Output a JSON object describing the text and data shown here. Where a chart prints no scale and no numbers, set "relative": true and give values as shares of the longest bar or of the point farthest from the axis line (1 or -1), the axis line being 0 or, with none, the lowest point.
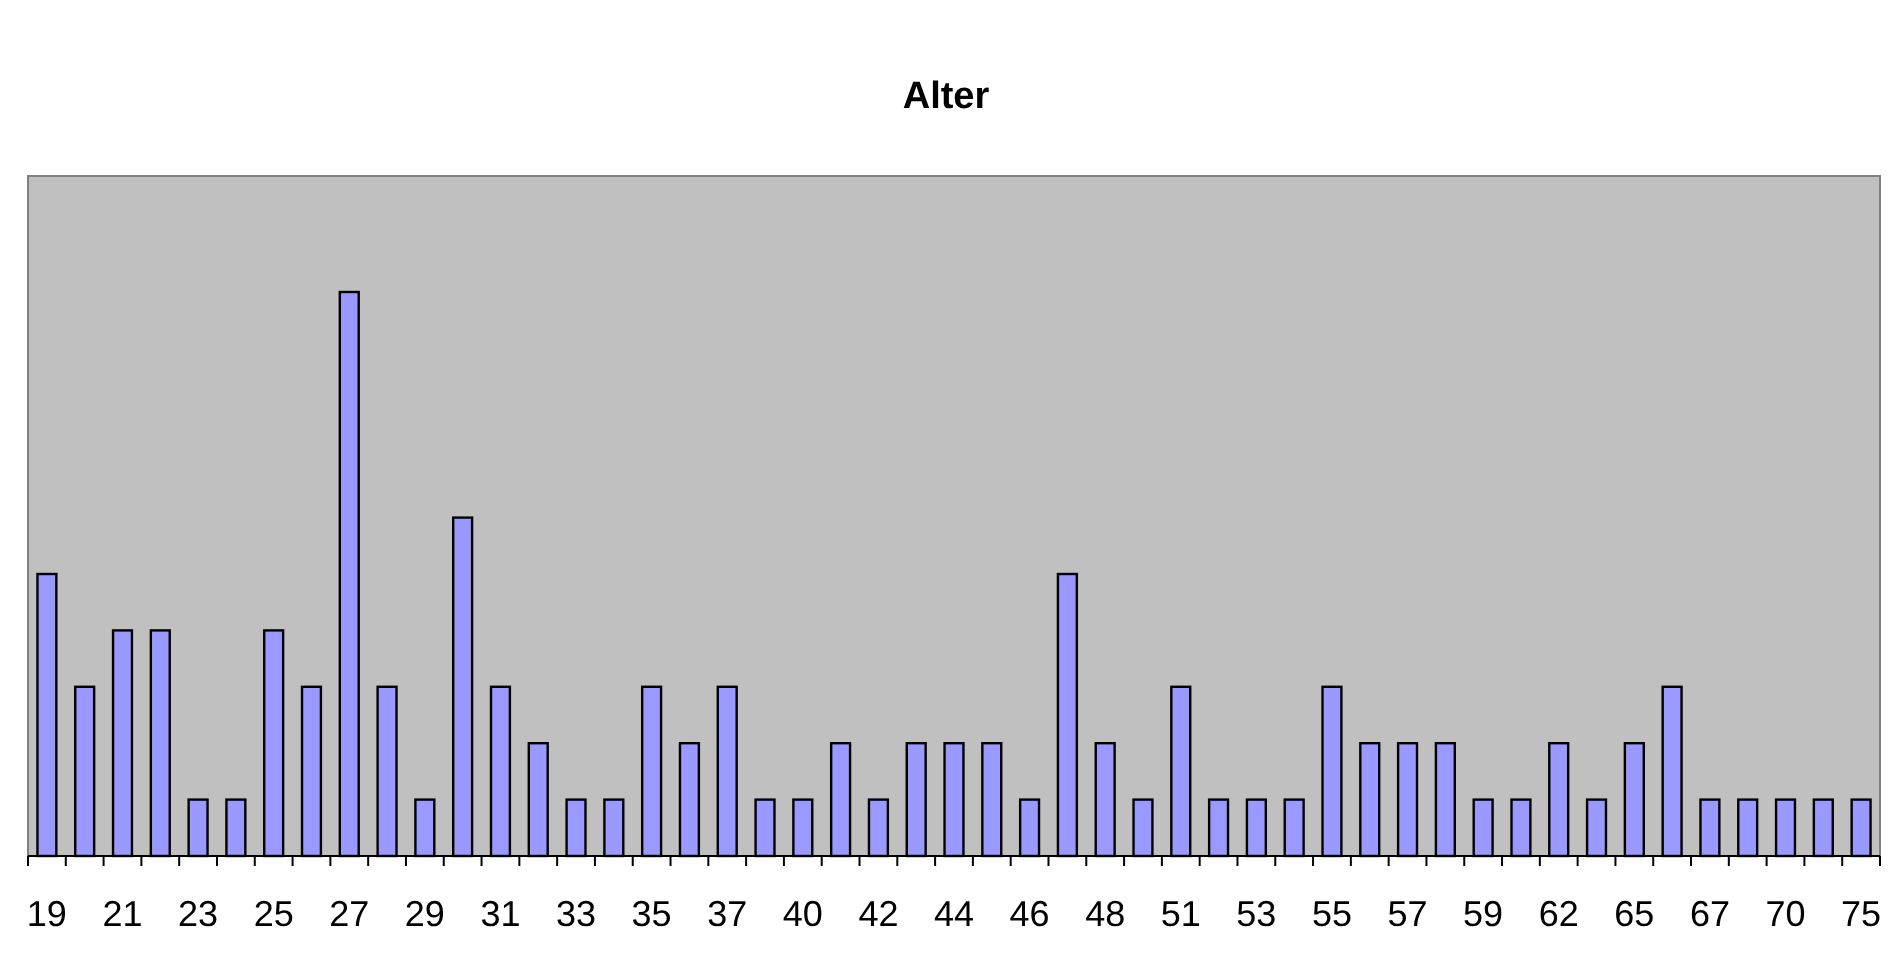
{
  "chart_data": {
    "type": "bar",
    "title": "Alter",
    "relative": true,
    "color": "#9999ff",
    "categories": [
      "19",
      null,
      "21",
      null,
      "23",
      null,
      "25",
      null,
      "27",
      null,
      "29",
      null,
      "31",
      null,
      "33",
      null,
      "35",
      null,
      "37",
      null,
      "40",
      null,
      "42",
      null,
      "44",
      null,
      "46",
      null,
      "48",
      null,
      "51",
      null,
      "53",
      null,
      "55",
      null,
      "57",
      null,
      "59",
      null,
      "62",
      null,
      "65",
      null,
      "67",
      null,
      "70",
      null,
      "75"
    ],
    "values": [
      0.5,
      0.3,
      0.4,
      0.4,
      0.1,
      0.1,
      0.4,
      0.3,
      1,
      0.3,
      0.1,
      0.6,
      0.3,
      0.2,
      0.1,
      0.1,
      0.3,
      0.2,
      0.3,
      0.1,
      0.1,
      0.2,
      0.1,
      0.2,
      0.2,
      0.2,
      0.1,
      0.5,
      0.2,
      0.1,
      0.3,
      0.1,
      0.1,
      0.1,
      0.3,
      0.2,
      0.2,
      0.2,
      0.1,
      0.1,
      0.2,
      0.1,
      0.2,
      0.3,
      0.1,
      0.1,
      0.1,
      0.1,
      0.1
    ]
  }
}
